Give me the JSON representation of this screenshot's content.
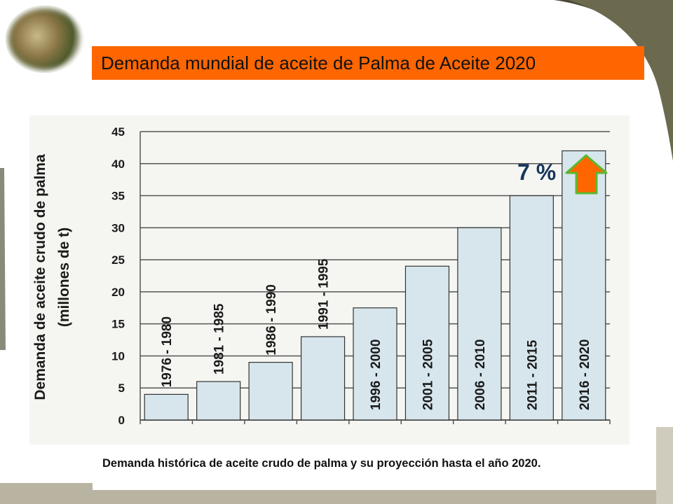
{
  "title": "Demanda mundial de aceite de Palma de Aceite 2020",
  "caption": "Demanda histórica de aceite crudo de palma y su proyección hasta el año 2020.",
  "colors": {
    "title_bg": "#ff6600",
    "bar_fill": "#d6e6ec",
    "arrow": "#ff6600",
    "arrow_border": "#5cb82f",
    "annotation": "#17365d"
  },
  "icons": {
    "logo": "oil-palm-photo",
    "growth": "up-arrow-icon"
  },
  "chart_data": {
    "type": "bar",
    "title": "",
    "ylabel_line1": "Demanda de aceite crudo de palma",
    "ylabel_line2": "(millones de t)",
    "xlabel": "",
    "ylim": [
      0,
      45
    ],
    "yticks": [
      0,
      5,
      10,
      15,
      20,
      25,
      30,
      35,
      40,
      45
    ],
    "grid": "horizontal",
    "categories": [
      "1976 - 1980",
      "1981 - 1985",
      "1986 - 1990",
      "1991 - 1995",
      "1996 - 2000",
      "2001 - 2005",
      "2006 - 2010",
      "2011 - 2015",
      "2016 - 2020"
    ],
    "values": [
      4,
      6,
      9,
      13,
      17.5,
      24,
      30,
      35,
      42
    ],
    "annotation": "7 %"
  }
}
